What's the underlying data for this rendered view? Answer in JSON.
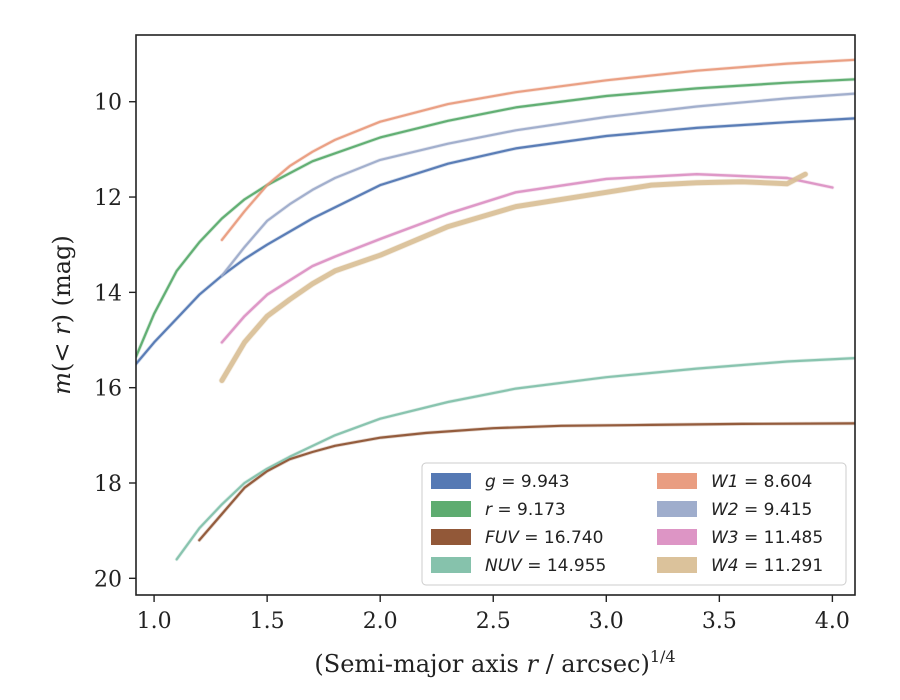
{
  "chart_data": {
    "type": "line",
    "xlabel_main": "(Semi-major axis ",
    "xlabel_var": "r",
    "xlabel_tail": " / arcsec)",
    "xlabel_sup": "1/4",
    "ylabel_main": "m",
    "ylabel_mid": "(< ",
    "ylabel_var": "r",
    "ylabel_tail": ") (mag)",
    "xlim": [
      0.92,
      4.1
    ],
    "ylim": [
      20.35,
      8.6
    ],
    "y_inverted": true,
    "xticks": [
      1.0,
      1.5,
      2.0,
      2.5,
      3.0,
      3.5,
      4.0
    ],
    "xtick_labels": [
      "1.0",
      "1.5",
      "2.0",
      "2.5",
      "3.0",
      "3.5",
      "4.0"
    ],
    "yticks": [
      10,
      12,
      14,
      16,
      18,
      20
    ],
    "ytick_labels": [
      "10",
      "12",
      "14",
      "16",
      "18",
      "20"
    ],
    "grid": false,
    "legend_position": "lower-right",
    "legend_columns": 2,
    "series": [
      {
        "name": "g",
        "label_value": "= 9.943",
        "color": "#4c72b0",
        "width": 2.2,
        "x": [
          0.92,
          1.0,
          1.1,
          1.2,
          1.3,
          1.4,
          1.5,
          1.7,
          2.0,
          2.3,
          2.6,
          3.0,
          3.4,
          3.8,
          4.1
        ],
        "y": [
          15.5,
          15.05,
          14.55,
          14.05,
          13.65,
          13.3,
          13.0,
          12.45,
          11.75,
          11.3,
          10.98,
          10.72,
          10.55,
          10.43,
          10.35
        ]
      },
      {
        "name": "r",
        "label_value": "= 9.173",
        "color": "#55a868",
        "width": 2.2,
        "x": [
          0.92,
          1.0,
          1.1,
          1.2,
          1.3,
          1.4,
          1.5,
          1.7,
          2.0,
          2.3,
          2.6,
          3.0,
          3.4,
          3.8,
          4.1
        ],
        "y": [
          15.35,
          14.45,
          13.55,
          12.95,
          12.45,
          12.05,
          11.75,
          11.25,
          10.75,
          10.4,
          10.12,
          9.88,
          9.72,
          9.6,
          9.53
        ]
      },
      {
        "name": "FUV",
        "label_value": "= 16.740",
        "color": "#8c4f2d",
        "width": 2.2,
        "x": [
          1.2,
          1.3,
          1.4,
          1.5,
          1.6,
          1.7,
          1.8,
          2.0,
          2.2,
          2.5,
          2.8,
          3.2,
          3.6,
          4.1
        ],
        "y": [
          19.2,
          18.65,
          18.1,
          17.75,
          17.5,
          17.35,
          17.22,
          17.05,
          16.95,
          16.85,
          16.8,
          16.78,
          16.76,
          16.75
        ]
      },
      {
        "name": "NUV",
        "label_value": "= 14.955",
        "color": "#7fbfa8",
        "width": 2.2,
        "x": [
          1.1,
          1.2,
          1.3,
          1.4,
          1.5,
          1.6,
          1.8,
          2.0,
          2.3,
          2.6,
          3.0,
          3.4,
          3.8,
          4.1
        ],
        "y": [
          19.6,
          18.95,
          18.45,
          18.0,
          17.7,
          17.45,
          17.0,
          16.65,
          16.3,
          16.02,
          15.78,
          15.6,
          15.45,
          15.38
        ]
      },
      {
        "name": "W1",
        "label_value": "= 8.604",
        "color": "#e8987a",
        "width": 2.2,
        "x": [
          1.3,
          1.4,
          1.5,
          1.6,
          1.7,
          1.8,
          2.0,
          2.3,
          2.6,
          3.0,
          3.4,
          3.8,
          4.1
        ],
        "y": [
          12.9,
          12.3,
          11.75,
          11.35,
          11.05,
          10.8,
          10.42,
          10.05,
          9.8,
          9.55,
          9.35,
          9.2,
          9.12
        ]
      },
      {
        "name": "W2",
        "label_value": "= 9.415",
        "color": "#9aa9c9",
        "width": 2.2,
        "x": [
          1.3,
          1.4,
          1.5,
          1.6,
          1.7,
          1.8,
          2.0,
          2.3,
          2.6,
          3.0,
          3.4,
          3.8,
          4.1
        ],
        "y": [
          13.65,
          13.05,
          12.5,
          12.15,
          11.85,
          11.6,
          11.22,
          10.88,
          10.6,
          10.32,
          10.1,
          9.93,
          9.83
        ]
      },
      {
        "name": "W3",
        "label_value": "= 11.485",
        "color": "#db8fc2",
        "width": 2.4,
        "x": [
          1.3,
          1.4,
          1.5,
          1.6,
          1.7,
          1.8,
          2.0,
          2.3,
          2.6,
          3.0,
          3.4,
          3.8,
          4.0
        ],
        "y": [
          15.05,
          14.5,
          14.05,
          13.75,
          13.45,
          13.25,
          12.88,
          12.35,
          11.9,
          11.62,
          11.52,
          11.6,
          11.8
        ]
      },
      {
        "name": "W4",
        "label_value": "= 11.291",
        "color": "#d9bf96",
        "width": 5,
        "x": [
          1.3,
          1.4,
          1.5,
          1.6,
          1.7,
          1.8,
          2.0,
          2.3,
          2.6,
          3.0,
          3.2,
          3.4,
          3.6,
          3.8,
          3.88
        ],
        "y": [
          15.85,
          15.05,
          14.5,
          14.15,
          13.82,
          13.55,
          13.22,
          12.62,
          12.2,
          11.9,
          11.75,
          11.7,
          11.68,
          11.72,
          11.52
        ]
      }
    ]
  }
}
